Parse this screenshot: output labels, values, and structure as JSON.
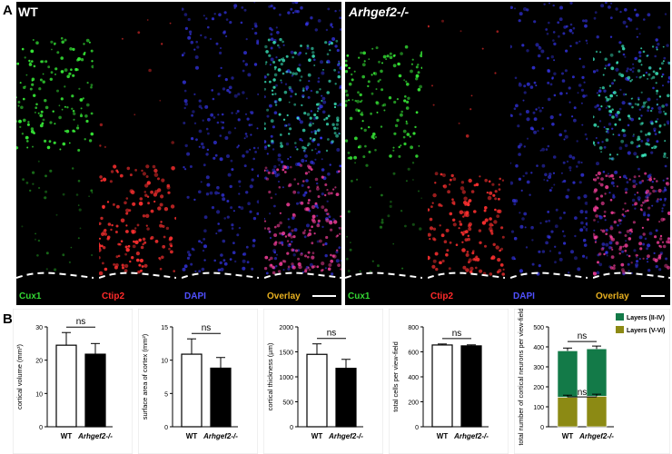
{
  "figure": {
    "panel_a_label": "A",
    "panel_b_label": "B",
    "groups": [
      {
        "title": "WT",
        "italic": false,
        "channels": [
          "Cux1",
          "Ctip2",
          "DAPI",
          "Overlay"
        ]
      },
      {
        "title": "Arhgef2-/-",
        "italic": true,
        "channels": [
          "Cux1",
          "Ctip2",
          "DAPI",
          "Overlay"
        ]
      }
    ],
    "channel_colors": {
      "Cux1": "#33d633",
      "Ctip2": "#ff2a2a",
      "DAPI": "#5050ff",
      "Overlay": "#e8b020"
    }
  },
  "chart_data": [
    {
      "type": "bar",
      "categories": [
        "WT",
        "Arhgef2-/-"
      ],
      "values": [
        24.5,
        21.8
      ],
      "errors": [
        3.8,
        3.2
      ],
      "ylabel": "cortical volume (mm³)",
      "ylim": [
        0,
        30
      ],
      "yticks": [
        "0",
        "10",
        "20",
        "30"
      ],
      "significance": "ns"
    },
    {
      "type": "bar",
      "categories": [
        "WT",
        "Arhgef2-/-"
      ],
      "values": [
        10.9,
        8.8
      ],
      "errors": [
        2.3,
        1.6
      ],
      "ylabel": "surface area of cortex (mm²)",
      "ylim": [
        0,
        15
      ],
      "yticks": [
        "0",
        "5",
        "10",
        "15"
      ],
      "significance": "ns"
    },
    {
      "type": "bar",
      "categories": [
        "WT",
        "Arhgef2-/-"
      ],
      "values": [
        1450,
        1170
      ],
      "errors": [
        210,
        180
      ],
      "ylabel": "cortical thickness (µm)",
      "ylim": [
        0,
        2000
      ],
      "yticks": [
        "0",
        "500",
        "1000",
        "1500",
        "2000"
      ],
      "significance": "ns"
    },
    {
      "type": "bar",
      "categories": [
        "WT",
        "Arhgef2-/-"
      ],
      "values": [
        655,
        648
      ],
      "errors": [
        8,
        8
      ],
      "ylabel": "total cells per view-field",
      "ylim": [
        0,
        800
      ],
      "yticks": [
        "0",
        "200",
        "400",
        "600",
        "800"
      ],
      "significance": "ns"
    },
    {
      "type": "bar",
      "stacked": true,
      "categories": [
        "WT",
        "Arhgef2-/-"
      ],
      "series": [
        {
          "name": "Layers (V-VI)",
          "values": [
            148,
            153
          ],
          "errors": [
            10,
            10
          ],
          "color": "#8c8a14"
        },
        {
          "name": "Layers (II-IV)",
          "values": [
            232,
            237
          ],
          "errors": [
            14,
            14
          ],
          "color": "#137a48"
        }
      ],
      "ylabel": "total number of cortical neurons per view-field",
      "ylim": [
        0,
        500
      ],
      "yticks": [
        "0",
        "100",
        "200",
        "300",
        "400",
        "500"
      ],
      "significance": [
        "ns",
        "ns"
      ],
      "legend_position": "top-right"
    }
  ]
}
